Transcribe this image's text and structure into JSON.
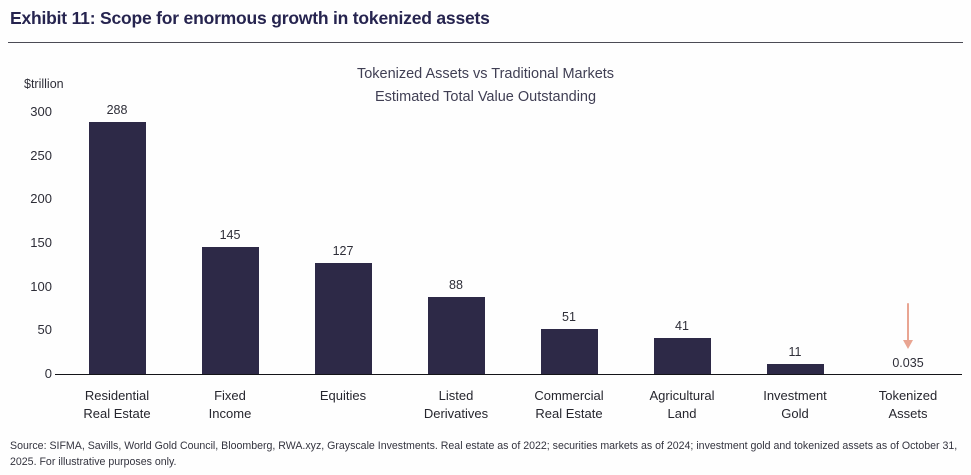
{
  "page": {
    "exhibit_title": "Exhibit 11: Scope for enormous growth in tokenized assets",
    "source_note": "Source: SIFMA, Savills, World Gold Council, Bloomberg, RWA.xyz, Grayscale Investments. Real estate as of 2022; securities markets as of 2024; investment gold and tokenized assets as of October 31, 2025. For illustrative purposes only."
  },
  "chart_data": {
    "type": "bar",
    "title": "Tokenized Assets vs Traditional Markets",
    "subtitle": "Estimated Total Value Outstanding",
    "unit_label": "$trillion",
    "categories": [
      [
        "Residential",
        "Real Estate"
      ],
      [
        "Fixed",
        "Income"
      ],
      [
        "Equities"
      ],
      [
        "Listed",
        "Derivatives"
      ],
      [
        "Commercial",
        "Real Estate"
      ],
      [
        "Agricultural",
        "Land"
      ],
      [
        "Investment",
        "Gold"
      ],
      [
        "Tokenized",
        "Assets"
      ]
    ],
    "values": [
      288,
      145,
      127,
      88,
      51,
      41,
      11,
      0.035
    ],
    "value_labels": [
      "288",
      "145",
      "127",
      "88",
      "51",
      "41",
      "11",
      "0.035"
    ],
    "yticks": [
      300,
      250,
      200,
      150,
      100,
      50,
      0
    ],
    "ylim": [
      0,
      300
    ],
    "grid": false,
    "legend": "none",
    "bar_color": "#2d2947",
    "arrow_color": "#e9a592",
    "annotation": {
      "type": "down-arrow",
      "category_index": 7
    }
  }
}
